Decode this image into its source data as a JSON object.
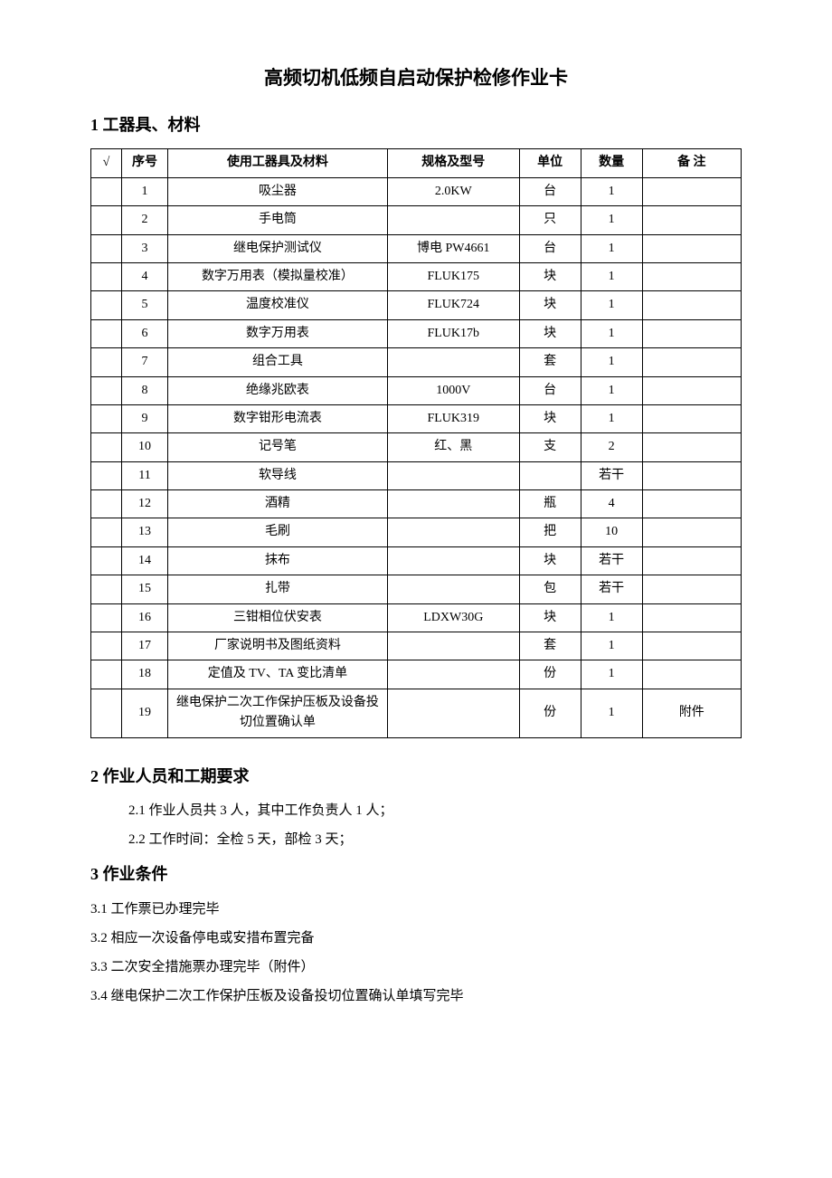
{
  "title": "高频切机低频自启动保护检修作业卡",
  "section1": {
    "heading": "1 工器具、材料",
    "table": {
      "headers": {
        "check": "√",
        "seq": "序号",
        "item": "使用工器具及材料",
        "spec": "规格及型号",
        "unit": "单位",
        "qty": "数量",
        "note": "备 注"
      },
      "rows": [
        {
          "seq": "1",
          "item": "吸尘器",
          "spec": "2.0KW",
          "unit": "台",
          "qty": "1",
          "note": ""
        },
        {
          "seq": "2",
          "item": "手电筒",
          "spec": "",
          "unit": "只",
          "qty": "1",
          "note": ""
        },
        {
          "seq": "3",
          "item": "继电保护测试仪",
          "spec": "博电 PW4661",
          "unit": "台",
          "qty": "1",
          "note": ""
        },
        {
          "seq": "4",
          "item": "数字万用表（模拟量校准）",
          "spec": "FLUK175",
          "unit": "块",
          "qty": "1",
          "note": ""
        },
        {
          "seq": "5",
          "item": "温度校准仪",
          "spec": "FLUK724",
          "unit": "块",
          "qty": "1",
          "note": ""
        },
        {
          "seq": "6",
          "item": "数字万用表",
          "spec": "FLUK17b",
          "unit": "块",
          "qty": "1",
          "note": ""
        },
        {
          "seq": "7",
          "item": "组合工具",
          "spec": "",
          "unit": "套",
          "qty": "1",
          "note": ""
        },
        {
          "seq": "8",
          "item": "绝缘兆欧表",
          "spec": "1000V",
          "unit": "台",
          "qty": "1",
          "note": ""
        },
        {
          "seq": "9",
          "item": "数字钳形电流表",
          "spec": "FLUK319",
          "unit": "块",
          "qty": "1",
          "note": ""
        },
        {
          "seq": "10",
          "item": "记号笔",
          "spec": "红、黑",
          "unit": "支",
          "qty": "2",
          "note": ""
        },
        {
          "seq": "11",
          "item": "软导线",
          "spec": "",
          "unit": "",
          "qty": "若干",
          "note": ""
        },
        {
          "seq": "12",
          "item": "酒精",
          "spec": "",
          "unit": "瓶",
          "qty": "4",
          "note": ""
        },
        {
          "seq": "13",
          "item": "毛刷",
          "spec": "",
          "unit": "把",
          "qty": "10",
          "note": ""
        },
        {
          "seq": "14",
          "item": "抹布",
          "spec": "",
          "unit": "块",
          "qty": "若干",
          "note": ""
        },
        {
          "seq": "15",
          "item": "扎带",
          "spec": "",
          "unit": "包",
          "qty": "若干",
          "note": ""
        },
        {
          "seq": "16",
          "item": "三钳相位伏安表",
          "spec": "LDXW30G",
          "unit": "块",
          "qty": "1",
          "note": ""
        },
        {
          "seq": "17",
          "item": "厂家说明书及图纸资料",
          "spec": "",
          "unit": "套",
          "qty": "1",
          "note": ""
        },
        {
          "seq": "18",
          "item": "定值及 TV、TA 变比清单",
          "spec": "",
          "unit": "份",
          "qty": "1",
          "note": ""
        },
        {
          "seq": "19",
          "item": "继电保护二次工作保护压板及设备投切位置确认单",
          "spec": "",
          "unit": "份",
          "qty": "1",
          "note": "附件"
        }
      ]
    }
  },
  "section2": {
    "heading": "2 作业人员和工期要求",
    "items": [
      "2.1 作业人员共 3 人，其中工作负责人 1 人；",
      "2.2 工作时间：全检 5 天，部检 3 天；"
    ]
  },
  "section3": {
    "heading": "3 作业条件",
    "items": [
      "3.1 工作票已办理完毕",
      "3.2 相应一次设备停电或安措布置完备",
      "3.3 二次安全措施票办理完毕（附件）",
      "3.4 继电保护二次工作保护压板及设备投切位置确认单填写完毕"
    ]
  }
}
